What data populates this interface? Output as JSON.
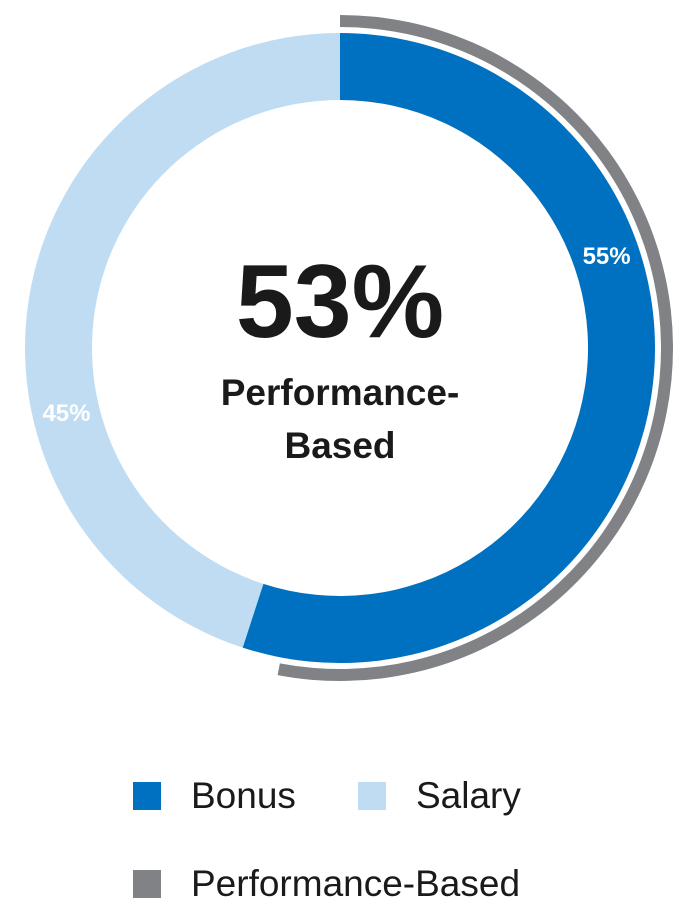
{
  "chart_data": {
    "type": "pie",
    "variant": "donut",
    "center": {
      "value": "53%",
      "label_line1": "Performance-",
      "label_line2": "Based"
    },
    "slices": [
      {
        "name": "Bonus",
        "value": 55,
        "label": "55%",
        "color": "#0070c0"
      },
      {
        "name": "Salary",
        "value": 45,
        "label": "45%",
        "color": "#bfdcf2"
      }
    ],
    "outer_arc": {
      "name": "Performance-Based",
      "value": 53,
      "color": "#808285"
    },
    "legend": [
      {
        "label": "Bonus",
        "color": "#0070c0"
      },
      {
        "label": "Salary",
        "color": "#bfdcf2"
      },
      {
        "label": "Performance-Based",
        "color": "#808285"
      }
    ],
    "legend_position": "bottom"
  }
}
